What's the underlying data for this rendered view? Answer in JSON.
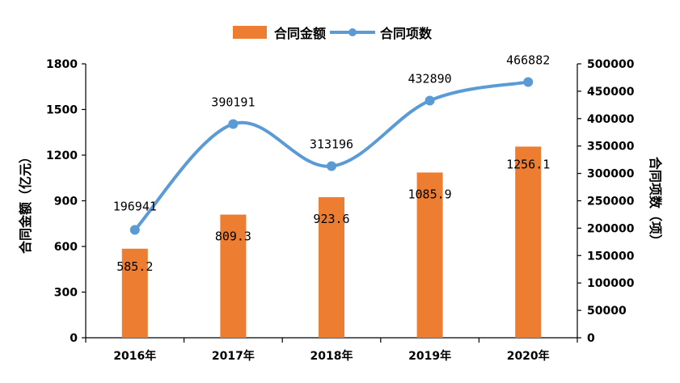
{
  "chart_data": {
    "type": "bar",
    "categories": [
      "2016年",
      "2017年",
      "2018年",
      "2019年",
      "2020年"
    ],
    "series": [
      {
        "name": "合同金额",
        "type": "bar",
        "axis": "left",
        "color": "#ED7D31",
        "values": [
          585.2,
          809.3,
          923.6,
          1085.9,
          1256.1
        ],
        "labels": [
          "585.2",
          "809.3",
          "923.6",
          "1085.9",
          "1256.1"
        ]
      },
      {
        "name": "合同项数",
        "type": "line",
        "axis": "right",
        "color": "#5B9BD5",
        "values": [
          196941,
          390191,
          313196,
          432890,
          466882
        ],
        "labels": [
          "196941",
          "390191",
          "313196",
          "432890",
          "466882"
        ]
      }
    ],
    "ylabel": "合同金额（亿元）",
    "y2label": "合同项数（项）",
    "ylim": [
      0,
      1800
    ],
    "y2lim": [
      0,
      500000
    ],
    "yticks": [
      "0",
      "300",
      "600",
      "900",
      "1200",
      "1500",
      "1800"
    ],
    "y2ticks": [
      "0",
      "50000",
      "100000",
      "150000",
      "200000",
      "250000",
      "300000",
      "350000",
      "400000",
      "450000",
      "500000"
    ],
    "grid": false,
    "legend_position": "top"
  }
}
